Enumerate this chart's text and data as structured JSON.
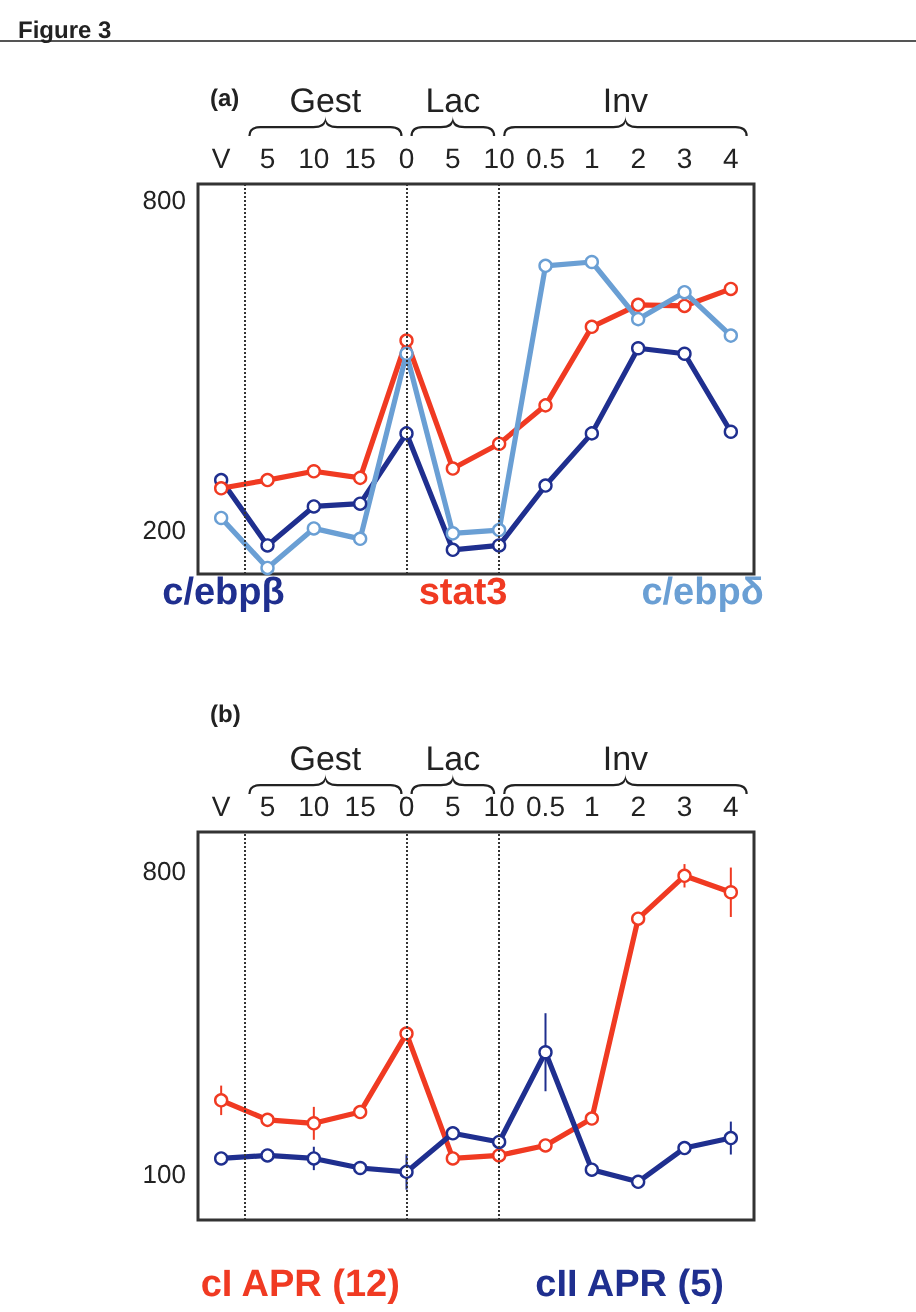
{
  "chart_data": [
    {
      "type": "line",
      "title": "Figure 3",
      "subtitle": "(a)",
      "categories": [
        "V",
        "5",
        "10",
        "15",
        "0",
        "5",
        "10",
        "0.5",
        "1",
        "2",
        "3",
        "4"
      ],
      "ylim": [
        120,
        830
      ],
      "yticks": [
        200,
        800
      ],
      "series": [
        {
          "name": "c/ebpβ",
          "color": "#1f2f8f",
          "values": [
            291,
            172,
            243,
            248,
            376,
            164,
            172,
            281,
            376,
            531,
            521,
            379
          ]
        },
        {
          "name": "stat3",
          "color": "#f03a22",
          "values": [
            276,
            291,
            307,
            295,
            545,
            312,
            357,
            427,
            570,
            610,
            608,
            639
          ]
        },
        {
          "name": "c/ebpδ",
          "color": "#6a9fd4",
          "values": [
            222,
            131,
            203,
            184,
            521,
            194,
            200,
            681,
            688,
            584,
            633,
            554
          ]
        }
      ],
      "annotations": [
        "Gest",
        "Lac",
        "Inv"
      ],
      "legend": "bottom",
      "marker": "circle",
      "line_style": "solid"
    },
    {
      "type": "line",
      "title": "(b)",
      "categories": [
        "V",
        "5",
        "10",
        "15",
        "0",
        "5",
        "10",
        "0.5",
        "1",
        "2",
        "3",
        "4"
      ],
      "ylim": [
        -5,
        890
      ],
      "yticks": [
        100,
        800
      ],
      "series": [
        {
          "name": "cI APR (12)",
          "color": "#f03a22",
          "values": [
            271,
            226,
            218,
            244,
            425,
            137,
            144,
            167,
            229,
            690,
            789,
            751
          ],
          "errors": [
            34,
            null,
            38,
            null,
            null,
            null,
            null,
            null,
            null,
            null,
            27,
            57
          ]
        },
        {
          "name": "cII APR (5)",
          "color": "#1f2f8f",
          "values": [
            137,
            144,
            137,
            115,
            106,
            195,
            175,
            382,
            111,
            83,
            161,
            184
          ],
          "errors": [
            null,
            null,
            27,
            null,
            41,
            null,
            null,
            90,
            null,
            null,
            null,
            38
          ]
        }
      ],
      "annotations": [
        "Gest",
        "Lac",
        "Inv"
      ],
      "legend": "bottom",
      "marker": "circle",
      "line_style": "solid"
    }
  ]
}
